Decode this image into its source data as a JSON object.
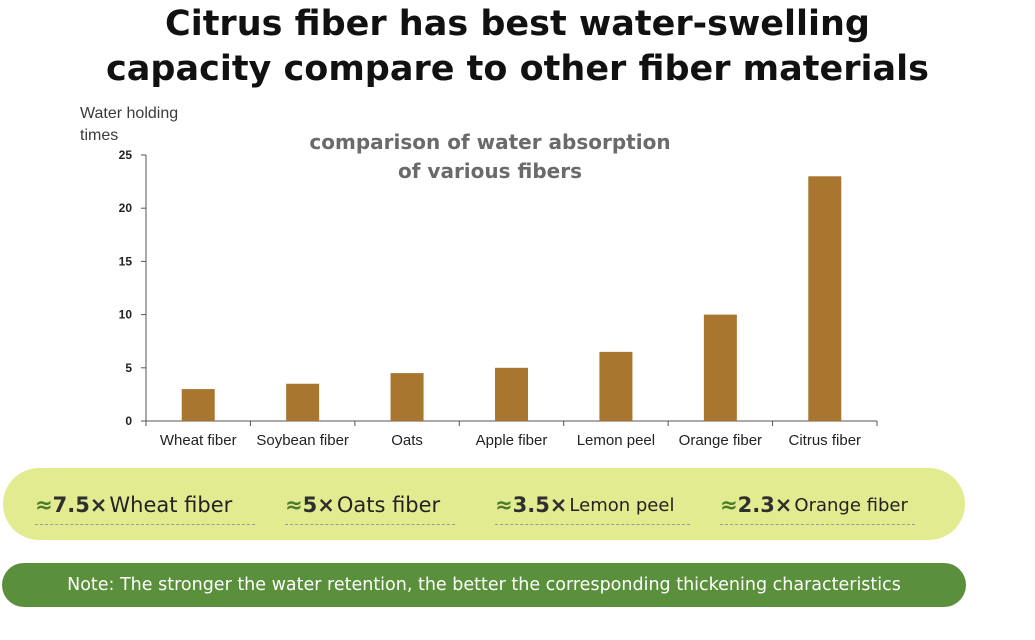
{
  "headline": {
    "line1": "Citrus fiber has best water-swelling",
    "line2": "capacity compare to other fiber materials"
  },
  "chart_data": {
    "type": "bar",
    "title_lines": [
      "comparison  of  water absorption",
      "of  various fibers"
    ],
    "ylabel_lines": [
      "Water holding",
      "times"
    ],
    "xlabel": "",
    "categories": [
      "Wheat fiber",
      "Soybean fiber",
      "Oats",
      "Apple fiber",
      "Lemon peel",
      "Orange fiber",
      "Citrus fiber"
    ],
    "values": [
      3,
      3.5,
      4.5,
      5,
      6.5,
      10,
      23
    ],
    "ylim": [
      0,
      25
    ],
    "yticks": [
      0,
      5,
      10,
      15,
      20,
      25
    ],
    "bar_color": "#a97630",
    "grid": false,
    "legend": "none"
  },
  "summary": [
    {
      "approx": "≈",
      "mult": "7.5×",
      "label": "Wheat fiber"
    },
    {
      "approx": "≈",
      "mult": "5×",
      "label": "Oats fiber"
    },
    {
      "approx": "≈",
      "mult": "3.5×",
      "label": "Lemon peel"
    },
    {
      "approx": "≈",
      "mult": "2.3×",
      "label": "Orange fiber"
    }
  ],
  "note": "Note: The stronger the water retention, the better the corresponding thickening characteristics",
  "colors": {
    "band": "#e2eb8f",
    "note_bar": "#5a8f3c",
    "approx": "#4a7a2a"
  }
}
